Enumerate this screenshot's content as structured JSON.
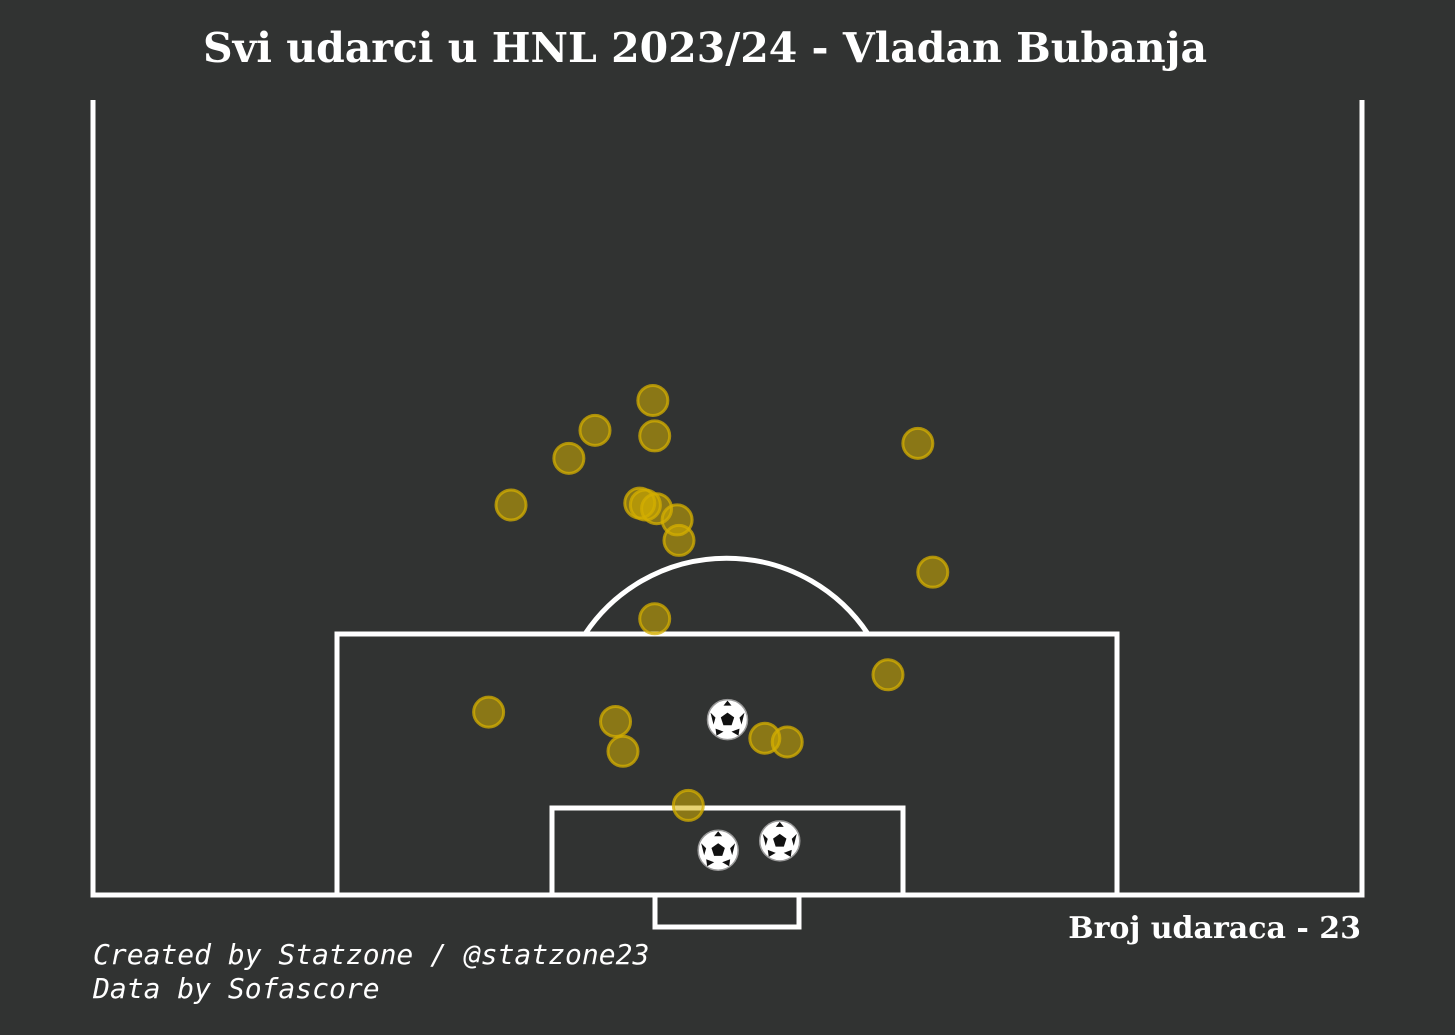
{
  "chart_data": {
    "type": "scatter",
    "title": "Svi udarci u HNL 2023/24 - Vladan Bubanja",
    "xlabel": "",
    "ylabel": "",
    "pitch": "half-pitch shot map, attacking goal at bottom",
    "x_range": [
      0,
      68
    ],
    "y_range": [
      0,
      42.4
    ],
    "legend": "none",
    "grid": false,
    "series": [
      {
        "outcome": "miss",
        "color": "#d4af00",
        "points": [
          {
            "x": 30.0,
            "y": 26.5
          },
          {
            "x": 26.9,
            "y": 24.9
          },
          {
            "x": 30.1,
            "y": 24.6
          },
          {
            "x": 25.5,
            "y": 23.4
          },
          {
            "x": 44.2,
            "y": 24.2
          },
          {
            "x": 22.4,
            "y": 20.9
          },
          {
            "x": 29.3,
            "y": 21.0
          },
          {
            "x": 29.6,
            "y": 20.9
          },
          {
            "x": 30.2,
            "y": 20.7
          },
          {
            "x": 31.3,
            "y": 20.1
          },
          {
            "x": 31.4,
            "y": 19.0
          },
          {
            "x": 45.0,
            "y": 17.3
          },
          {
            "x": 30.1,
            "y": 14.8
          },
          {
            "x": 42.6,
            "y": 11.8
          },
          {
            "x": 21.2,
            "y": 9.8
          },
          {
            "x": 28.0,
            "y": 9.3
          },
          {
            "x": 28.4,
            "y": 7.7
          },
          {
            "x": 36.0,
            "y": 8.4
          },
          {
            "x": 37.2,
            "y": 8.2
          },
          {
            "x": 31.9,
            "y": 4.8
          }
        ]
      },
      {
        "outcome": "goal",
        "color": "#ffffff",
        "points": [
          {
            "x": 34.0,
            "y": 9.4
          },
          {
            "x": 33.5,
            "y": 2.4
          },
          {
            "x": 36.8,
            "y": 2.9
          }
        ]
      }
    ]
  },
  "annotations": {
    "shot_count": "Broj udaraca - 23",
    "credit_line_1": "Created by Statzone / @statzone23",
    "credit_line_2": "Data by Sofascore"
  },
  "colors": {
    "background": "#313332",
    "lines": "#ffffff",
    "miss_fill": "#d4af00"
  }
}
